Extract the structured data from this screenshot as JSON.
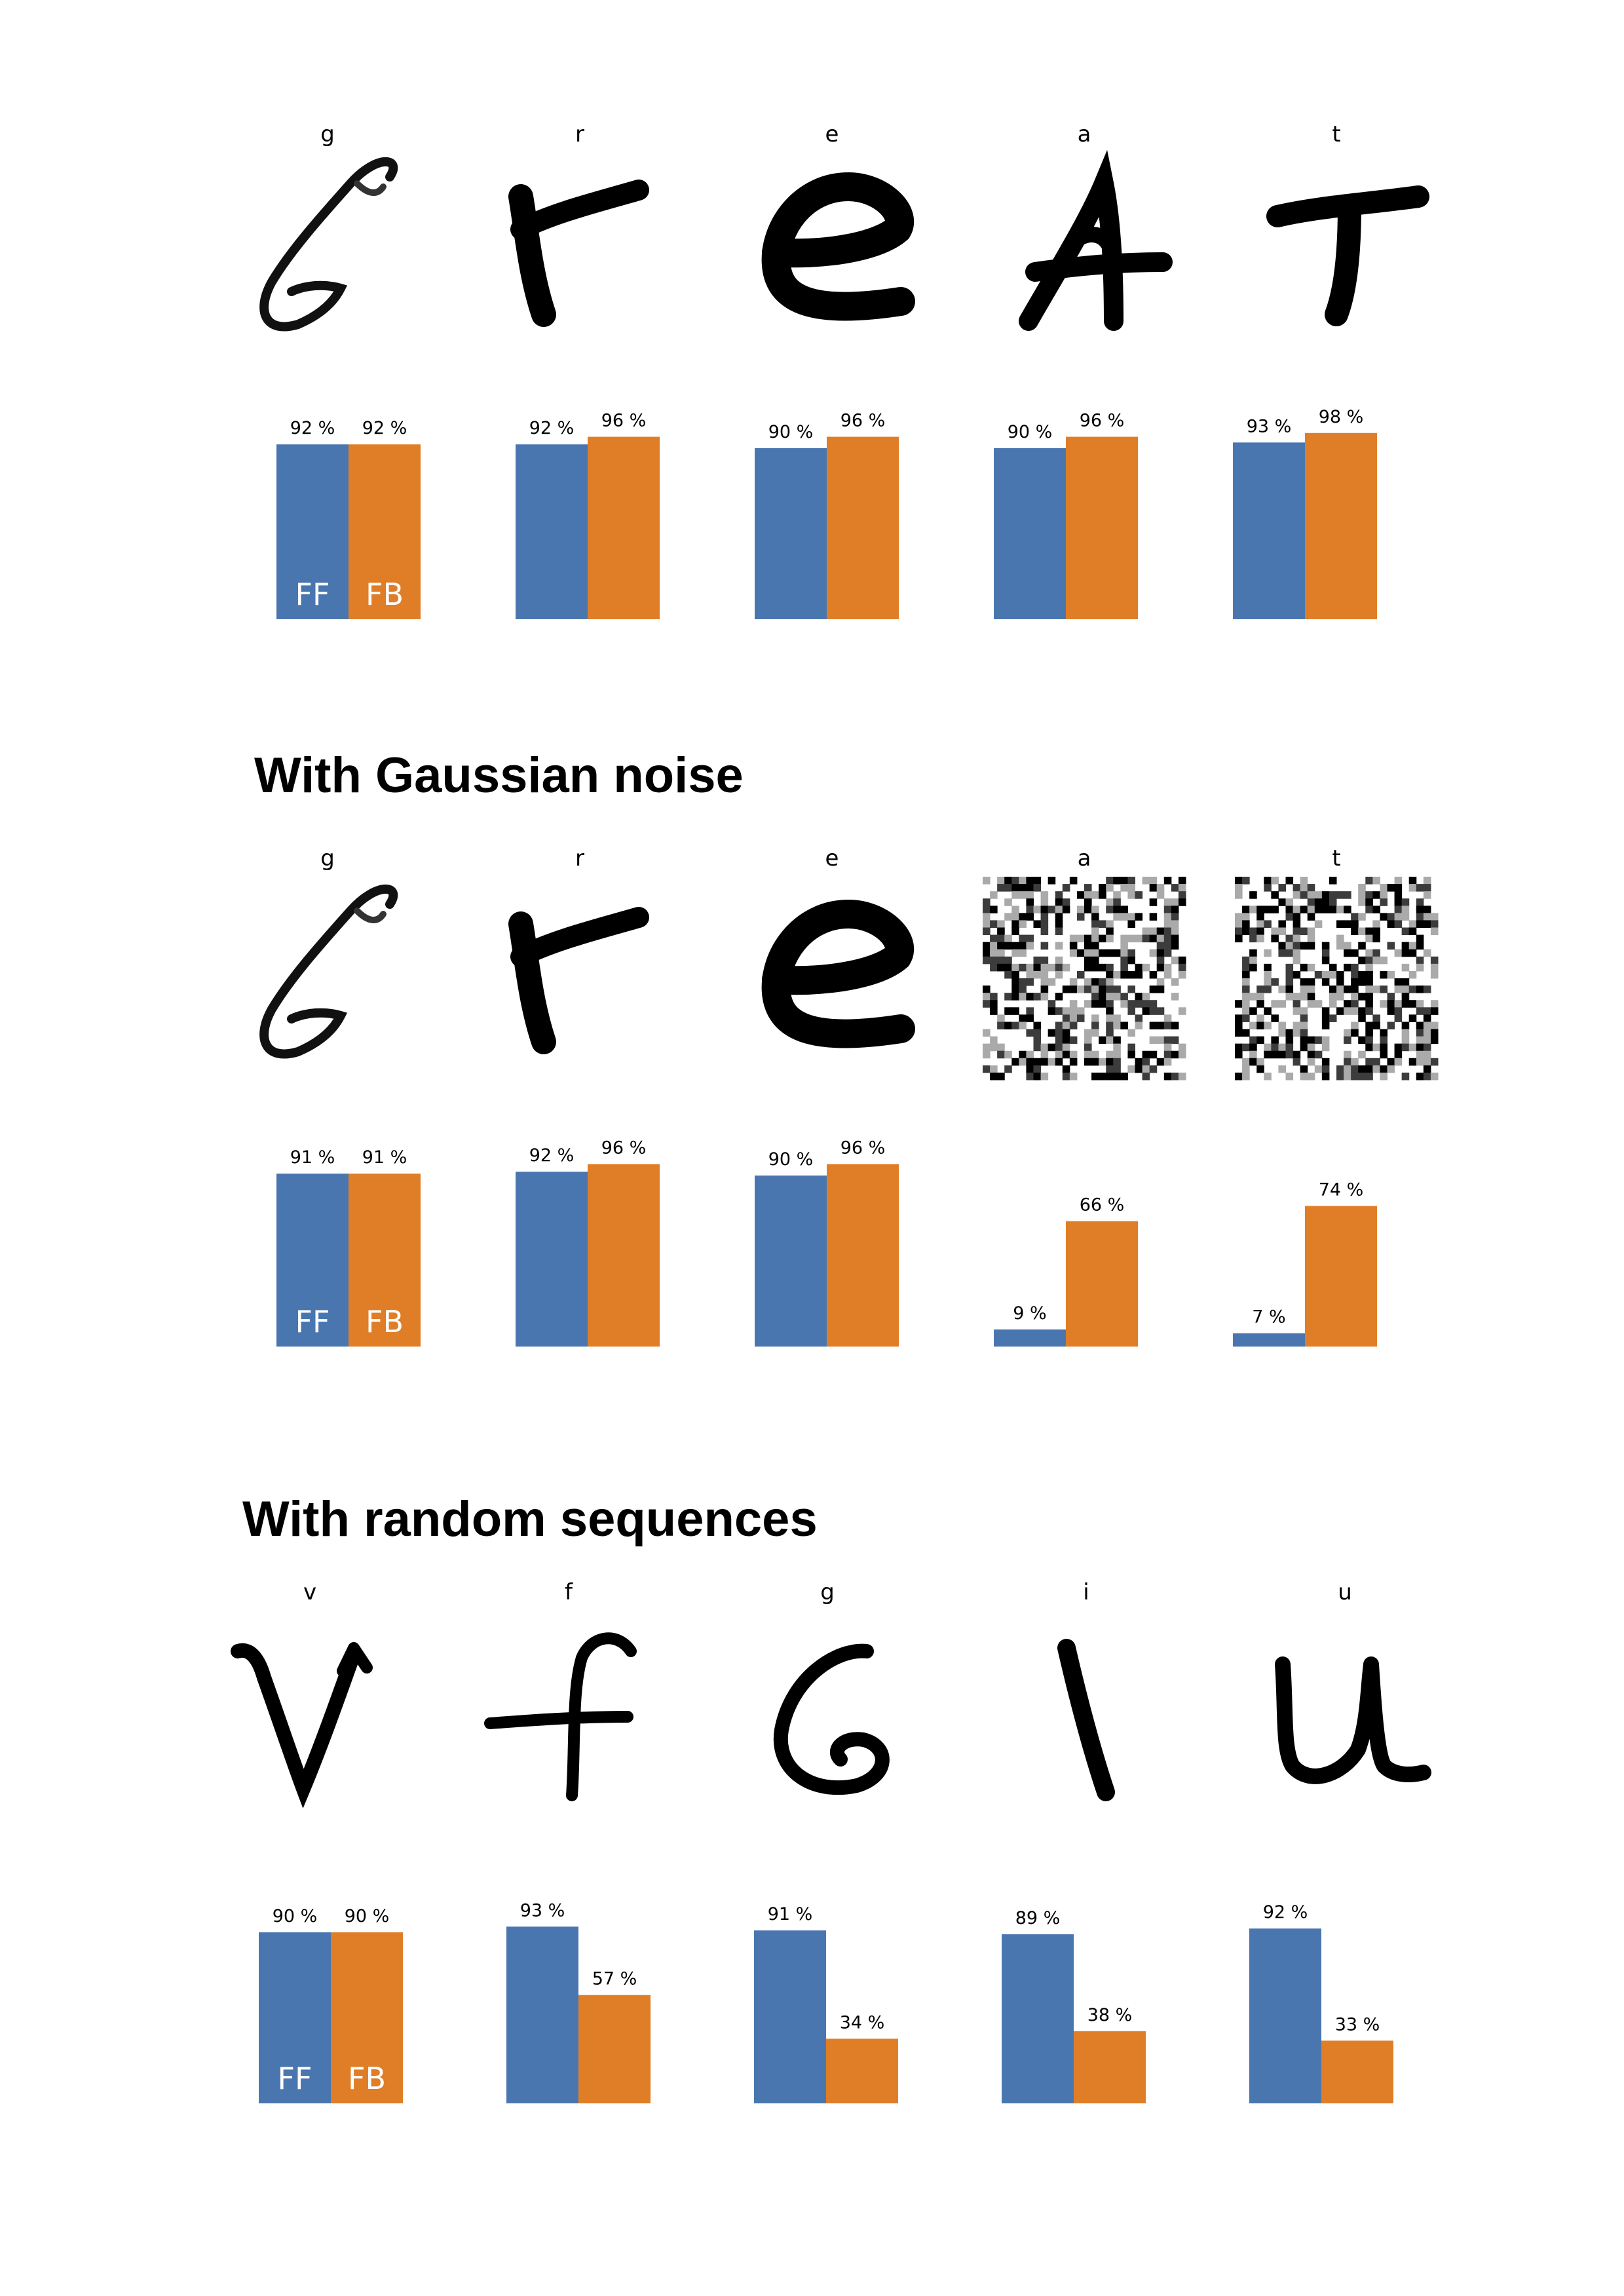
{
  "colors": {
    "ff": "#4a76b0",
    "fb": "#e07e27"
  },
  "series_tags": [
    "FF",
    "FB"
  ],
  "sections": [
    {
      "title": "",
      "letters": [
        "g",
        "r",
        "e",
        "a",
        "t"
      ],
      "value_labels": [
        [
          "92 %",
          "92 %"
        ],
        [
          "92 %",
          "96 %"
        ],
        [
          "90 %",
          "96 %"
        ],
        [
          "90 %",
          "96 %"
        ],
        [
          "93 %",
          "98 %"
        ]
      ]
    },
    {
      "title": "With Gaussian noise",
      "letters": [
        "g",
        "r",
        "e",
        "a",
        "t"
      ],
      "value_labels": [
        [
          "91 %",
          "91 %"
        ],
        [
          "92 %",
          "96 %"
        ],
        [
          "90 %",
          "96 %"
        ],
        [
          "9 %",
          "66 %"
        ],
        [
          "7 %",
          "74 %"
        ]
      ]
    },
    {
      "title": "With random sequences",
      "letters": [
        "v",
        "f",
        "g",
        "i",
        "u"
      ],
      "value_labels": [
        [
          "90 %",
          "90 %"
        ],
        [
          "93 %",
          "57 %"
        ],
        [
          "91 %",
          "34 %"
        ],
        [
          "89 %",
          "38 %"
        ],
        [
          "92 %",
          "33 %"
        ]
      ]
    }
  ],
  "chart_data": [
    {
      "type": "bar",
      "title": "",
      "categories": [
        "g",
        "r",
        "e",
        "a",
        "t"
      ],
      "ylim": [
        0,
        100
      ],
      "series": [
        {
          "name": "FF",
          "values": [
            92,
            92,
            90,
            90,
            93
          ]
        },
        {
          "name": "FB",
          "values": [
            92,
            96,
            96,
            96,
            98
          ]
        }
      ]
    },
    {
      "type": "bar",
      "title": "With Gaussian noise",
      "categories": [
        "g",
        "r",
        "e",
        "a",
        "t"
      ],
      "ylim": [
        0,
        100
      ],
      "series": [
        {
          "name": "FF",
          "values": [
            91,
            92,
            90,
            9,
            7
          ]
        },
        {
          "name": "FB",
          "values": [
            91,
            96,
            96,
            66,
            74
          ]
        }
      ]
    },
    {
      "type": "bar",
      "title": "With random sequences",
      "categories": [
        "v",
        "f",
        "g",
        "i",
        "u"
      ],
      "ylim": [
        0,
        100
      ],
      "series": [
        {
          "name": "FF",
          "values": [
            90,
            93,
            91,
            89,
            92
          ]
        },
        {
          "name": "FB",
          "values": [
            90,
            57,
            34,
            38,
            33
          ]
        }
      ]
    }
  ]
}
